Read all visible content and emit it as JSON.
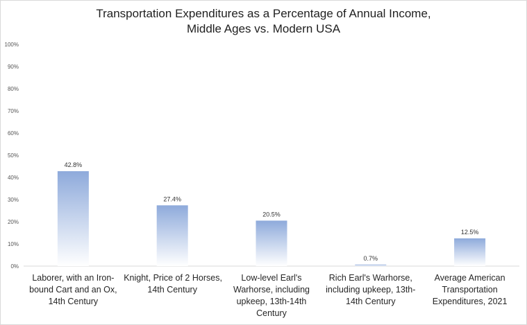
{
  "chart_data": {
    "type": "bar",
    "title": [
      "Transportation Expenditures as a Percentage of Annual Income,",
      "Middle Ages vs. Modern USA"
    ],
    "categories": [
      [
        "Laborer, with an Iron-",
        "bound Cart and an Ox,",
        "14th Century"
      ],
      [
        "Knight, Price of 2 Horses,",
        "14th Century"
      ],
      [
        "Low-level Earl's",
        "Warhorse, including",
        "upkeep, 13th-14th",
        "Century"
      ],
      [
        "Rich Earl's Warhorse,",
        "including upkeep, 13th-",
        "14th Century"
      ],
      [
        "Average American",
        "Transportation",
        "Expenditures, 2021"
      ]
    ],
    "values": [
      42.8,
      27.4,
      20.5,
      0.7,
      12.5
    ],
    "data_labels": [
      "42.8%",
      "27.4%",
      "20.5%",
      "0.7%",
      "12.5%"
    ],
    "y_ticks": [
      "0%",
      "10%",
      "20%",
      "30%",
      "40%",
      "50%",
      "60%",
      "70%",
      "80%",
      "90%",
      "100%"
    ],
    "ylim": [
      0,
      100
    ],
    "xlabel": "",
    "ylabel": "",
    "grid": false,
    "bar_color_top": "#8eaadb",
    "bar_color_bottom": "#ffffff"
  }
}
